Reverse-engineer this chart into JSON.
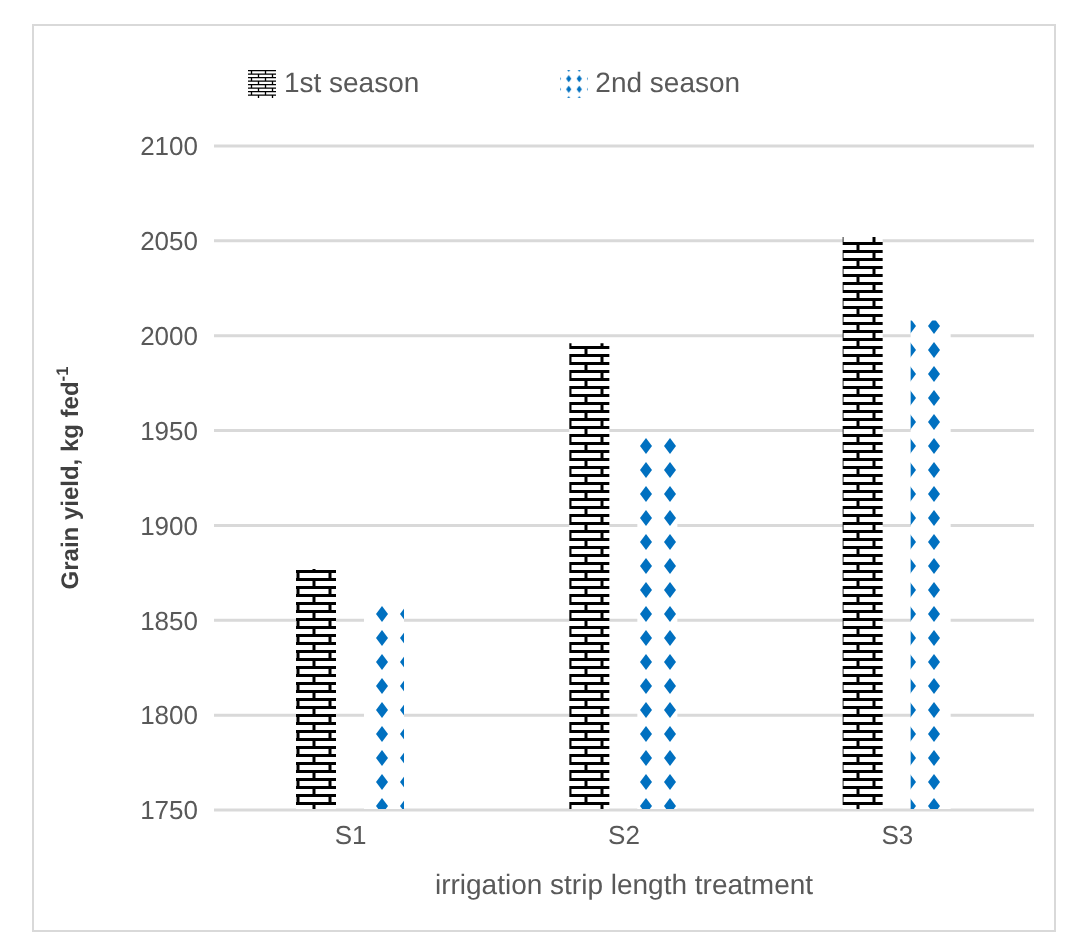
{
  "chart_data": {
    "type": "bar",
    "xlabel": "irrigation strip length treatment",
    "ylabel": "Grain yield, kg fed$^{-1}$",
    "categories": [
      "S1",
      "S2",
      "S3"
    ],
    "series": [
      {
        "name": "1st season",
        "color": "#000000",
        "values": [
          1877,
          1996,
          2052
        ]
      },
      {
        "name": "2nd season",
        "color": "#0070c0",
        "values": [
          1858,
          1947,
          2008
        ]
      }
    ],
    "ylim": [
      1750,
      2100
    ],
    "yticks": [
      1750,
      1800,
      1850,
      1900,
      1950,
      2000,
      2050,
      2100
    ],
    "grid": "y",
    "legend": "top"
  }
}
